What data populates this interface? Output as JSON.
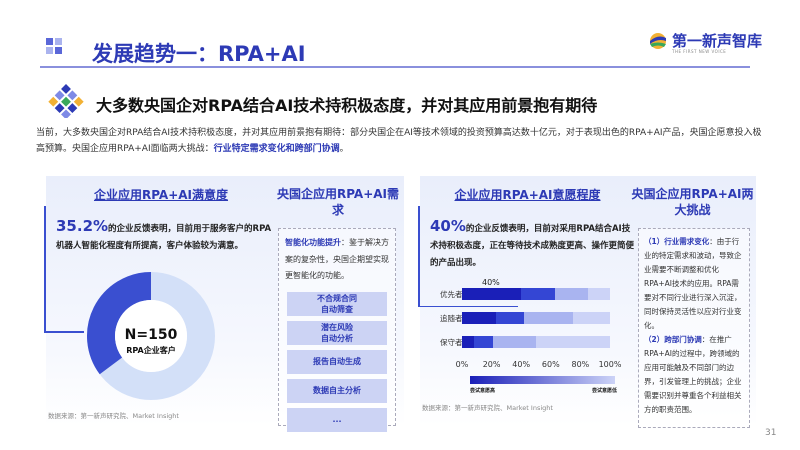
{
  "header": {
    "title": "发展趋势一：RPA+AI",
    "logo_text": "第一新声智库",
    "logo_sub": "THE FIRST NEW VOICE"
  },
  "subtitle": "大多数央国企对RPA结合AI技术持积极态度，并对其应用前景抱有期待",
  "intro": {
    "text": "当前，大多数央国企对RPA结合AI技术持积极态度，并对其应用前景抱有期待：部分央国企在AI等技术领域的投资预算高达数十亿元，对于表现出色的RPA+AI产品，央国企愿意投入极高预算。央国企应用RPA+AI面临两大挑战：",
    "highlight": "行业特定需求变化和跨部门协调",
    "end": "。"
  },
  "left": {
    "title": "企业应用RPA+AI满意度",
    "stat": "35.2%",
    "stat_text": "的企业反馈表明，目前用于服务客户的RPA机器人智能化程度有所提高，客户体验较为满意。",
    "donut": {
      "value": 35.2,
      "center_main": "N=150",
      "center_sub": "RPA企业客户",
      "color_main": "#3a4fd0",
      "color_rest": "#d3e0f8"
    },
    "needs_title": "央国企应用RPA+AI需求",
    "needs_lead": "智能化功能提升",
    "needs_text": "：鉴于解决方案的复杂性，央国企期望实现更智能化的功能。",
    "needs_items": [
      "不合规合同\n自动筛查",
      "潜在风险\n自动分析",
      "报告自动生成",
      "数据自主分析",
      "..."
    ],
    "source": "数据来源：第一新声研究院、Market Insight"
  },
  "right": {
    "title": "企业应用RPA+AI意愿程度",
    "stat": "40%",
    "stat_text": "的企业反馈表明，目前对采用RPA结合AI技术持积极态度，正在等待技术成熟度更高、操作更简便的产品出现。",
    "challenges_title": "央国企应用RPA+AI两大挑战",
    "c1_lead": "（1）行业需求变化",
    "c1_text": "：由于行业的特定需求和波动，导致企业需要不断调整和优化RPA+AI技术的应用。RPA需要对不同行业进行深入沉淀，同时保持灵活性以应对行业变化。",
    "c2_lead": "（2）跨部门协调",
    "c2_text": "：在推广RPA+AI的过程中，跨领域的应用可能触及不同部门的边界，引发管理上的挑战；企业需要识别并尊重各个利益相关方的职责范围。",
    "source": "数据来源：第一新声研究院、Market Insight"
  },
  "chart_data": {
    "type": "bar",
    "orientation": "horizontal",
    "stacked": true,
    "categories": [
      "优先者",
      "追随者",
      "保守者"
    ],
    "x_ticks": [
      "0%",
      "20%",
      "40%",
      "60%",
      "80%",
      "100%"
    ],
    "xlim": [
      0,
      100
    ],
    "series": [
      {
        "values": [
          40,
          23,
          8
        ]
      },
      {
        "values": [
          23,
          19,
          13
        ]
      },
      {
        "values": [
          22,
          33,
          29
        ]
      },
      {
        "values": [
          15,
          25,
          50
        ]
      }
    ],
    "colors": [
      "#1a1fb8",
      "#3446d4",
      "#a9b4f0",
      "#ccd3f7"
    ],
    "annotation": "40%",
    "legend": {
      "low_label": "尝试意愿高",
      "high_label": "尝试意愿低"
    }
  },
  "page_number": "31"
}
